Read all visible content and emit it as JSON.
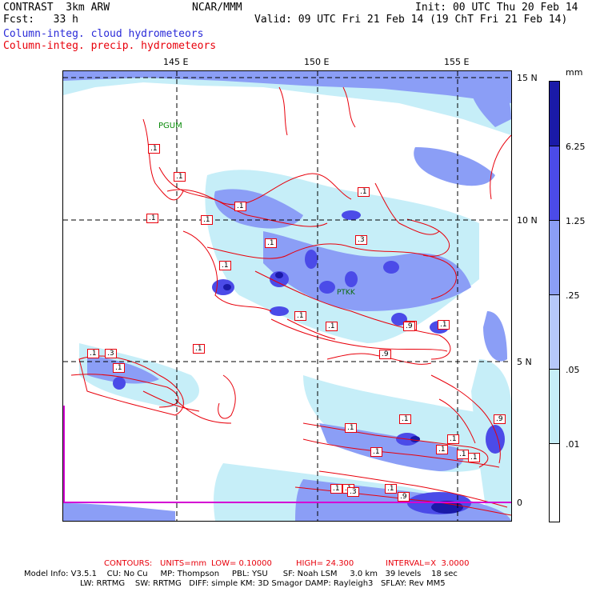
{
  "header": {
    "model_name": "CONTRAST  3km ARW",
    "forecast": "Fcst:   33 h",
    "institution": "NCAR/MMM",
    "init": "Init: 00 UTC Thu 20 Feb 14",
    "valid": "Valid: 09 UTC Fri 21 Feb 14 (19 ChT Fri 21 Feb 14)",
    "field1": "Column-integ. cloud hydrometeors",
    "field2": "Column-integ. precip. hydrometeors"
  },
  "colors": {
    "field1": "#2a2ad8",
    "field2": "#e8000b",
    "cloud_light": "#c6eef8",
    "cloud_mid": "#8b9ef6",
    "cloud_dark": "#4b4be8",
    "cloud_darkest": "#1a1aa8",
    "contour": "#e8000b",
    "magenta": "#d400d4"
  },
  "map": {
    "lon_labels": [
      "145 E",
      "150 E",
      "155 E"
    ],
    "lat_labels": [
      "15 N",
      "10 N",
      "5 N",
      "0"
    ],
    "stations": [
      "PGUM",
      "PTKK"
    ],
    "contour_labels": [
      ".1",
      ".1",
      ".1",
      ".1",
      ".1",
      ".1",
      ".1",
      ".1",
      ".1",
      ".1",
      ".1",
      ".3",
      ".1",
      ".3",
      ".1",
      ".9",
      ".9",
      ".1",
      ".9",
      ".1",
      ".1",
      ".1",
      ".1",
      ".1",
      ".1",
      ".1",
      ".9",
      ".1",
      ".1",
      ".3",
      ".1",
      ".9"
    ]
  },
  "legend": {
    "units": "mm",
    "levels": [
      "6.25",
      "1.25",
      ".25",
      ".05",
      ".01"
    ]
  },
  "footer": {
    "contours_label": "CONTOURS:",
    "units": "UNITS=mm",
    "low": "LOW= 0.10000",
    "high": "HIGH= 24.300",
    "interval": "INTERVAL=X  3.0000",
    "model_info_1": "Model Info: V3.5.1    CU: No Cu     MP: Thompson     PBL: YSU      SF: Noah LSM     3.0 km   39 levels    18 sec",
    "model_info_2": "LW: RRTMG    SW: RRTMG   DIFF: simple KM: 3D Smagor DAMP: Rayleigh3   SFLAY: Rev MM5"
  }
}
